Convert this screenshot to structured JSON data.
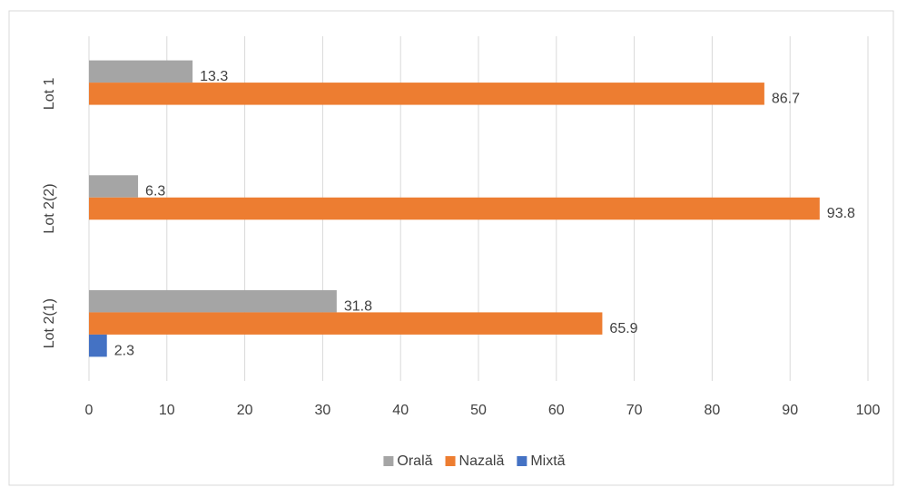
{
  "chart_data": {
    "type": "hbar",
    "categories": [
      "Lot 2(1)",
      "Lot 2(2)",
      "Lot 1"
    ],
    "series": [
      {
        "name": "Orală",
        "color": "#a5a5a5",
        "values": [
          31.8,
          6.3,
          13.3
        ]
      },
      {
        "name": "Nazală",
        "color": "#ed7d31",
        "values": [
          65.9,
          93.8,
          86.7
        ]
      },
      {
        "name": "Mixtă",
        "color": "#4472c4",
        "values": [
          2.3,
          null,
          null
        ]
      }
    ],
    "xlim": [
      0,
      100
    ],
    "xticks": [
      0,
      10,
      20,
      30,
      40,
      50,
      60,
      70,
      80,
      90,
      100
    ],
    "grid": true,
    "legend": "bottom"
  }
}
